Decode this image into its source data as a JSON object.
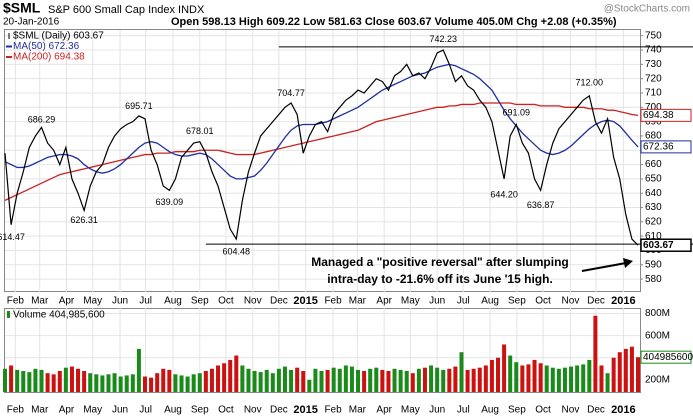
{
  "header": {
    "symbol": "$SML",
    "name": "S&P 600 Small Cap Index INDX",
    "date": "20-Jan-2016",
    "quote": "Open 598.13 High 609.22 Low 581.63 Close 603.67 Volume 405.0M Chg +2.08 (+0.35%)",
    "source": "@StockCharts.com"
  },
  "chart_data": {
    "type": "line",
    "x": [
      0,
      1,
      2,
      3,
      4,
      5,
      6,
      7,
      8,
      9,
      10,
      11,
      12,
      13,
      14,
      15,
      16,
      17,
      18,
      19,
      20,
      21,
      22,
      23,
      24,
      25,
      26,
      27,
      28,
      29,
      30,
      31,
      32,
      33,
      34,
      35,
      36,
      37,
      38,
      39,
      40,
      41,
      42,
      43,
      44,
      45,
      46,
      47,
      48,
      49,
      50,
      51,
      52,
      53,
      54,
      55,
      56,
      57,
      58,
      59,
      60,
      61,
      62,
      63,
      64,
      65,
      66,
      67,
      68,
      69,
      70,
      71,
      72,
      73,
      74,
      75,
      76,
      77,
      78,
      79,
      80,
      81,
      82,
      83,
      84,
      85,
      86,
      87,
      88,
      89,
      90,
      91,
      92,
      93,
      94,
      95,
      96,
      97,
      98,
      99,
      100,
      101,
      102,
      103,
      104
    ],
    "xlim": [
      0,
      104
    ],
    "xticks": [
      {
        "value": 1.7,
        "label": "Feb"
      },
      {
        "value": 5.7,
        "label": "Mar"
      },
      {
        "value": 10.1,
        "label": "Apr"
      },
      {
        "value": 14.4,
        "label": "May"
      },
      {
        "value": 18.9,
        "label": "Jun"
      },
      {
        "value": 23.1,
        "label": "Jul"
      },
      {
        "value": 27.6,
        "label": "Aug"
      },
      {
        "value": 32,
        "label": "Sep"
      },
      {
        "value": 36.3,
        "label": "Oct"
      },
      {
        "value": 40.7,
        "label": "Nov"
      },
      {
        "value": 45,
        "label": "Dec"
      },
      {
        "value": 49.4,
        "label": "2015"
      },
      {
        "value": 53.9,
        "label": "Feb"
      },
      {
        "value": 57.9,
        "label": "Mar"
      },
      {
        "value": 62.3,
        "label": "Apr"
      },
      {
        "value": 66.6,
        "label": "May"
      },
      {
        "value": 71,
        "label": "Jun"
      },
      {
        "value": 75.3,
        "label": "Jul"
      },
      {
        "value": 79.7,
        "label": "Aug"
      },
      {
        "value": 84.1,
        "label": "Sep"
      },
      {
        "value": 88.4,
        "label": "Oct"
      },
      {
        "value": 92.9,
        "label": "Nov"
      },
      {
        "value": 97.1,
        "label": "Dec"
      },
      {
        "value": 101.6,
        "label": "2016"
      }
    ],
    "ylim": [
      571,
      754
    ],
    "yticks": [
      580,
      590,
      600,
      610,
      620,
      630,
      640,
      650,
      660,
      670,
      680,
      690,
      700,
      710,
      720,
      730,
      740,
      750
    ],
    "grid": true,
    "legend": "upper left",
    "series": [
      {
        "name": "$SML (Daily) 603.67",
        "color": "#000000",
        "values": [
          668,
          618,
          640,
          655,
          672,
          680,
          686,
          675,
          670,
          660,
          672,
          650,
          640,
          628,
          645,
          655,
          660,
          672,
          680,
          685,
          688,
          690,
          694,
          692,
          670,
          660,
          645,
          642,
          650,
          665,
          670,
          675,
          676,
          668,
          655,
          645,
          630,
          615,
          608,
          635,
          655,
          668,
          680,
          685,
          690,
          695,
          700,
          703,
          695,
          668,
          680,
          688,
          690,
          683,
          695,
          700,
          705,
          708,
          712,
          710,
          715,
          720,
          718,
          712,
          722,
          725,
          730,
          722,
          724,
          720,
          728,
          738,
          740,
          730,
          718,
          722,
          715,
          712,
          705,
          700,
          690,
          670,
          650,
          680,
          688,
          675,
          668,
          650,
          642,
          660,
          675,
          685,
          690,
          695,
          700,
          705,
          708,
          690,
          682,
          692,
          665,
          650,
          625,
          608,
          603.67
        ]
      },
      {
        "name": "MA(50) 672.36",
        "color": "#1f2f9f",
        "values": [
          662,
          660,
          658,
          658,
          659,
          661,
          663,
          665,
          666,
          667,
          667,
          666,
          664,
          660,
          657,
          655,
          654,
          655,
          657,
          660,
          664,
          668,
          672,
          675,
          676,
          675,
          672,
          669,
          667,
          666,
          666,
          667,
          668,
          667,
          664,
          660,
          656,
          652,
          650,
          650,
          651,
          652,
          656,
          661,
          667,
          673,
          679,
          684,
          687,
          688,
          688,
          688,
          689,
          690,
          692,
          694,
          696,
          698,
          700,
          703,
          706,
          709,
          712,
          714,
          716,
          718,
          720,
          722,
          723,
          724,
          726,
          728,
          729,
          730,
          729,
          727,
          725,
          723,
          720,
          716,
          712,
          705,
          698,
          692,
          687,
          682,
          678,
          674,
          670,
          668,
          667,
          668,
          670,
          673,
          677,
          681,
          685,
          688,
          690,
          691,
          690,
          687,
          682,
          677,
          672.36
        ]
      },
      {
        "name": "MA(200) 694.38",
        "color": "#cc2222",
        "values": [
          635,
          637,
          639,
          641,
          643,
          645,
          647,
          649,
          651,
          653,
          654,
          655,
          656,
          657,
          658,
          659,
          660,
          661,
          662,
          663,
          664,
          665,
          666,
          667,
          667,
          668,
          668,
          668,
          669,
          669,
          669,
          669,
          670,
          670,
          670,
          670,
          669,
          668,
          667,
          667,
          667,
          667,
          668,
          669,
          670,
          671,
          672,
          673,
          674,
          675,
          676,
          677,
          678,
          679,
          680,
          681,
          682,
          683,
          684,
          686,
          688,
          690,
          691,
          692,
          693,
          694,
          695,
          696,
          697,
          698,
          699,
          700,
          700,
          701,
          701,
          702,
          702,
          702,
          703,
          703,
          703,
          703,
          703,
          703,
          702,
          702,
          702,
          702,
          701,
          701,
          701,
          701,
          700,
          700,
          700,
          700,
          699,
          699,
          699,
          698,
          698,
          697,
          696,
          695,
          694.38
        ]
      }
    ],
    "annotations": [
      {
        "x": 1,
        "value": 614.47
      },
      {
        "x": 6,
        "value": 686.29
      },
      {
        "x": 13,
        "value": 626.31
      },
      {
        "x": 22,
        "value": 695.71
      },
      {
        "x": 27,
        "value": 639.09
      },
      {
        "x": 32,
        "value": 678.01
      },
      {
        "x": 38,
        "value": 604.48
      },
      {
        "x": 47,
        "value": 704.77
      },
      {
        "x": 72,
        "value": 742.23
      },
      {
        "x": 82,
        "value": 644.2,
        "label": "644.20"
      },
      {
        "x": 88,
        "value": 636.87
      },
      {
        "x": 84,
        "value": 691.09
      },
      {
        "x": 96,
        "value": 712,
        "label": "712.00"
      }
    ],
    "reference_lines": [
      {
        "from": 45,
        "value": 742.23
      },
      {
        "from": 33,
        "value": 604.48
      }
    ],
    "note": [
      "Managed a \"positive reversal\" after slumping",
      "intra-day to -21.6% off its June '15 high."
    ],
    "volume": {
      "label": "Volume 404,985,600",
      "up_color": "#1a8a1a",
      "down_color": "#cc1111",
      "ylim": [
        90000000,
        850000000
      ],
      "yticks": [
        {
          "value": 200000000,
          "label": "200M"
        },
        {
          "value": 400000000,
          "label": "400M"
        },
        {
          "value": 600000000,
          "label": "600M"
        },
        {
          "value": 800000000,
          "label": "800M"
        }
      ],
      "values": [
        300000000,
        330000000,
        290000000,
        280000000,
        270000000,
        300000000,
        290000000,
        260000000,
        250000000,
        280000000,
        310000000,
        320000000,
        300000000,
        280000000,
        260000000,
        250000000,
        240000000,
        250000000,
        260000000,
        230000000,
        240000000,
        250000000,
        480000000,
        230000000,
        220000000,
        260000000,
        300000000,
        290000000,
        250000000,
        240000000,
        230000000,
        250000000,
        260000000,
        280000000,
        300000000,
        330000000,
        350000000,
        380000000,
        420000000,
        330000000,
        300000000,
        280000000,
        270000000,
        290000000,
        260000000,
        300000000,
        320000000,
        290000000,
        310000000,
        280000000,
        200000000,
        300000000,
        280000000,
        290000000,
        310000000,
        300000000,
        330000000,
        320000000,
        290000000,
        280000000,
        300000000,
        310000000,
        290000000,
        280000000,
        300000000,
        290000000,
        280000000,
        260000000,
        300000000,
        310000000,
        330000000,
        310000000,
        290000000,
        300000000,
        320000000,
        450000000,
        290000000,
        300000000,
        310000000,
        330000000,
        380000000,
        400000000,
        520000000,
        420000000,
        360000000,
        330000000,
        340000000,
        380000000,
        350000000,
        330000000,
        310000000,
        300000000,
        310000000,
        320000000,
        330000000,
        340000000,
        380000000,
        780000000,
        330000000,
        260000000,
        400000000,
        450000000,
        480000000,
        500000000,
        404985600
      ]
    }
  }
}
